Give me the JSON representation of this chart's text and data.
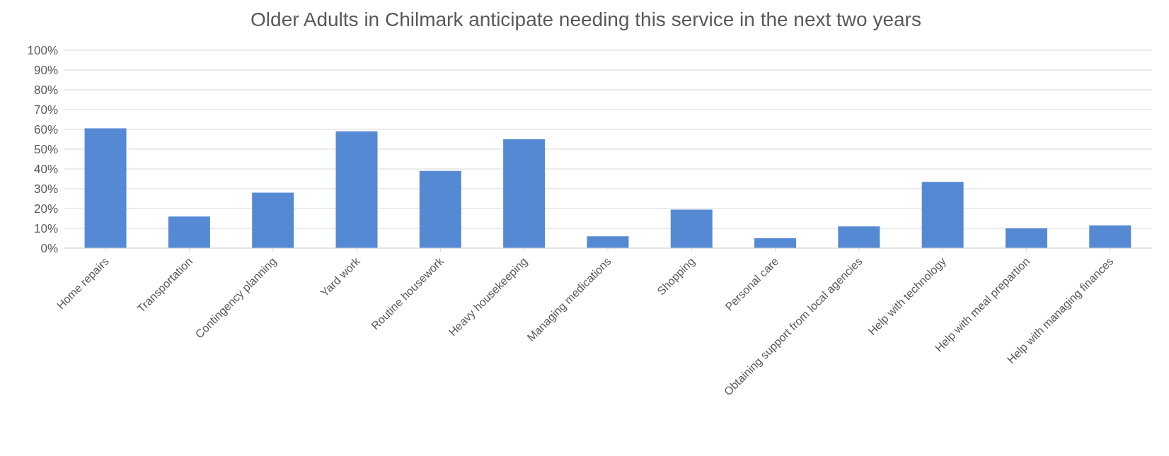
{
  "chart_data": {
    "type": "bar",
    "title": "Older Adults in Chilmark anticipate needing this service in the next two years",
    "categories": [
      "Home repairs",
      "Transportation",
      "Contingency planning",
      "Yard work",
      "Routine housework",
      "Heavy housekeeping",
      "Managing medications",
      "Shopping",
      "Personal care",
      "Obtaining support from local agencies",
      "Help with technology",
      "Help with meal prepartion",
      "Help with managing finances"
    ],
    "values": [
      60.5,
      16,
      28,
      59,
      39,
      55,
      6,
      19.5,
      5,
      11,
      33.5,
      10,
      11.5
    ],
    "color": "#5589d4",
    "ylim": [
      0,
      100
    ],
    "yticks": [
      {
        "value": 0,
        "label": "0%"
      },
      {
        "value": 10,
        "label": "10%"
      },
      {
        "value": 20,
        "label": "20%"
      },
      {
        "value": 30,
        "label": "30%"
      },
      {
        "value": 40,
        "label": "40%"
      },
      {
        "value": 50,
        "label": "50%"
      },
      {
        "value": 60,
        "label": "60%"
      },
      {
        "value": 70,
        "label": "70%"
      },
      {
        "value": 80,
        "label": "80%"
      },
      {
        "value": 90,
        "label": "90%"
      },
      {
        "value": 100,
        "label": "100%"
      }
    ],
    "grid": "y"
  }
}
